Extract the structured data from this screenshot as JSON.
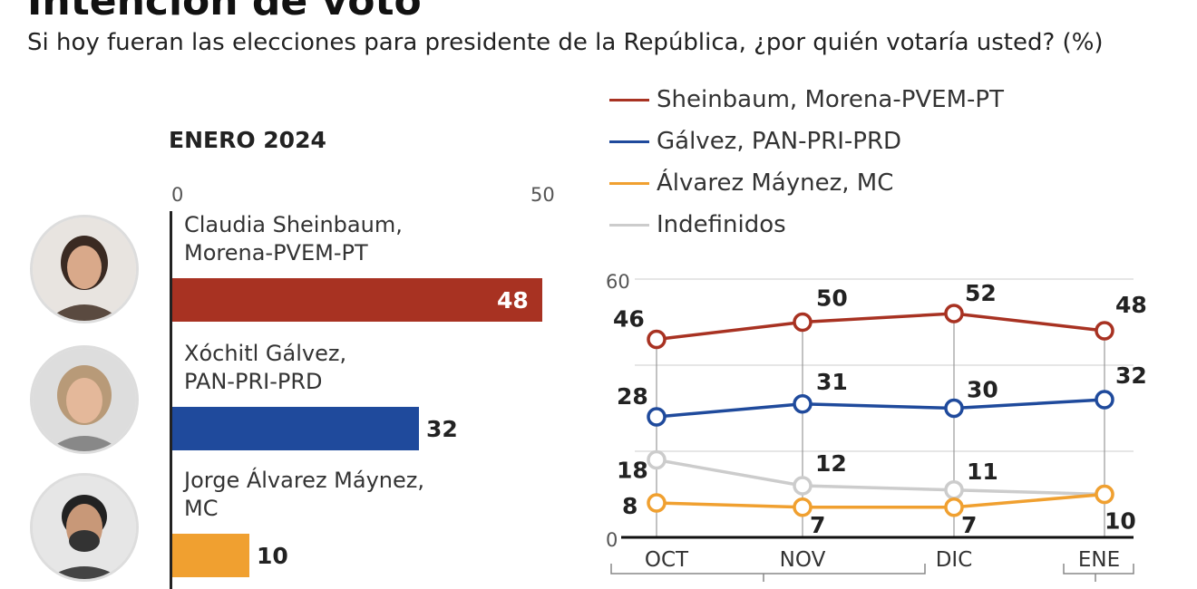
{
  "header": {
    "title": "Intención de voto",
    "subtitle": "Si hoy fueran las elecciones para presidente de la República, ¿por quién votaría usted? (%)"
  },
  "chart_data": [
    {
      "type": "bar",
      "orientation": "horizontal",
      "title": "ENERO 2024",
      "xlim": [
        0,
        50
      ],
      "tick_labels": [
        "0",
        "50"
      ],
      "categories": [
        "Claudia Sheinbaum, Morena-PVEM-PT",
        "Xóchitl Gálvez, PAN-PRI-PRD",
        "Jorge Álvarez Máynez, MC"
      ],
      "category_lines": [
        [
          "Claudia Sheinbaum,",
          "Morena-PVEM-PT"
        ],
        [
          "Xóchitl Gálvez,",
          "PAN-PRI-PRD"
        ],
        [
          "Jorge Álvarez Máynez,",
          "MC"
        ]
      ],
      "values": [
        48,
        32,
        10
      ],
      "colors": [
        "#a83222",
        "#1f4a9c",
        "#f0a030"
      ],
      "value_labels": [
        "48",
        "32",
        "10"
      ]
    },
    {
      "type": "line",
      "categories": [
        "OCT",
        "NOV",
        "DIC",
        "ENE"
      ],
      "ylim": [
        0,
        60
      ],
      "y_tick_labels": [
        "0",
        "60"
      ],
      "gridlines": [
        20,
        40,
        60
      ],
      "legend_position": "top",
      "series": [
        {
          "name": "Sheinbaum, Morena-PVEM-PT",
          "color": "#a83222",
          "values": [
            46,
            50,
            52,
            48
          ]
        },
        {
          "name": "Gálvez, PAN-PRI-PRD",
          "color": "#1f4a9c",
          "values": [
            28,
            31,
            30,
            32
          ]
        },
        {
          "name": "Álvarez Máynez, MC",
          "color": "#f0a030",
          "values": [
            8,
            7,
            7,
            10
          ]
        },
        {
          "name": "Indefinidos",
          "color": "#cccccc",
          "values": [
            18,
            12,
            11,
            10
          ]
        }
      ]
    }
  ]
}
